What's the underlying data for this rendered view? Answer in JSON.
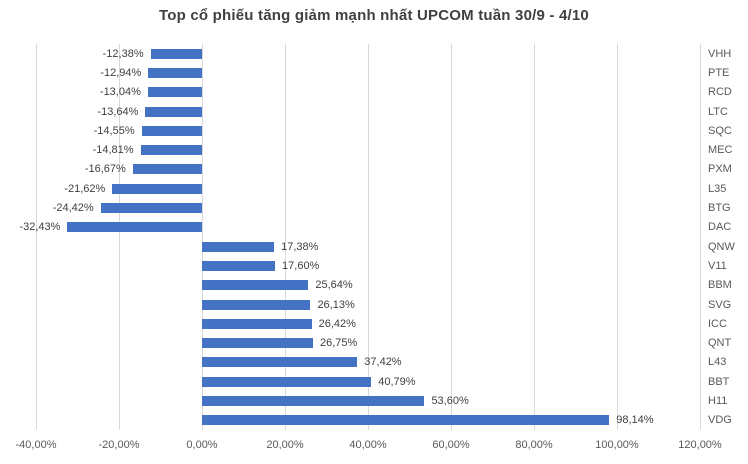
{
  "chart_data": {
    "type": "bar",
    "orientation": "horizontal",
    "title": "Top cổ phiếu tăng giảm mạnh nhất UPCOM tuần 30/9 - 4/10",
    "categories": [
      "VHH",
      "PTE",
      "RCD",
      "LTC",
      "SQC",
      "MEC",
      "PXM",
      "L35",
      "BTG",
      "DAC",
      "QNW",
      "V11",
      "BBM",
      "SVG",
      "ICC",
      "QNT",
      "L43",
      "BBT",
      "H11",
      "VDG"
    ],
    "values": [
      -12.38,
      -12.94,
      -13.04,
      -13.64,
      -14.55,
      -14.81,
      -16.67,
      -21.62,
      -24.42,
      -32.43,
      17.38,
      17.6,
      25.64,
      26.13,
      26.42,
      26.75,
      37.42,
      40.79,
      53.6,
      98.14
    ],
    "value_labels": [
      "-12,38%",
      "-12,94%",
      "-13,04%",
      "-13,64%",
      "-14,55%",
      "-14,81%",
      "-16,67%",
      "-21,62%",
      "-24,42%",
      "-32,43%",
      "17,38%",
      "17,60%",
      "25,64%",
      "26,13%",
      "26,42%",
      "26,75%",
      "37,42%",
      "40,79%",
      "53,60%",
      "98,14%"
    ],
    "x_tick_labels": [
      "-40,00%",
      "-20,00%",
      "0,00%",
      "20,00%",
      "40,00%",
      "60,00%",
      "80,00%",
      "100,00%",
      "120,00%"
    ],
    "x_tick_values": [
      -40,
      -20,
      0,
      20,
      40,
      60,
      80,
      100,
      120
    ],
    "xlim": [
      -40,
      120
    ],
    "grid": true,
    "legend": false,
    "bar_color": "#4472C4",
    "gridline_color": "#D9D9D9",
    "title_color": "#404040",
    "axis_label_color": "#595959",
    "value_label_color": "#404040",
    "background": "#FFFFFF"
  }
}
